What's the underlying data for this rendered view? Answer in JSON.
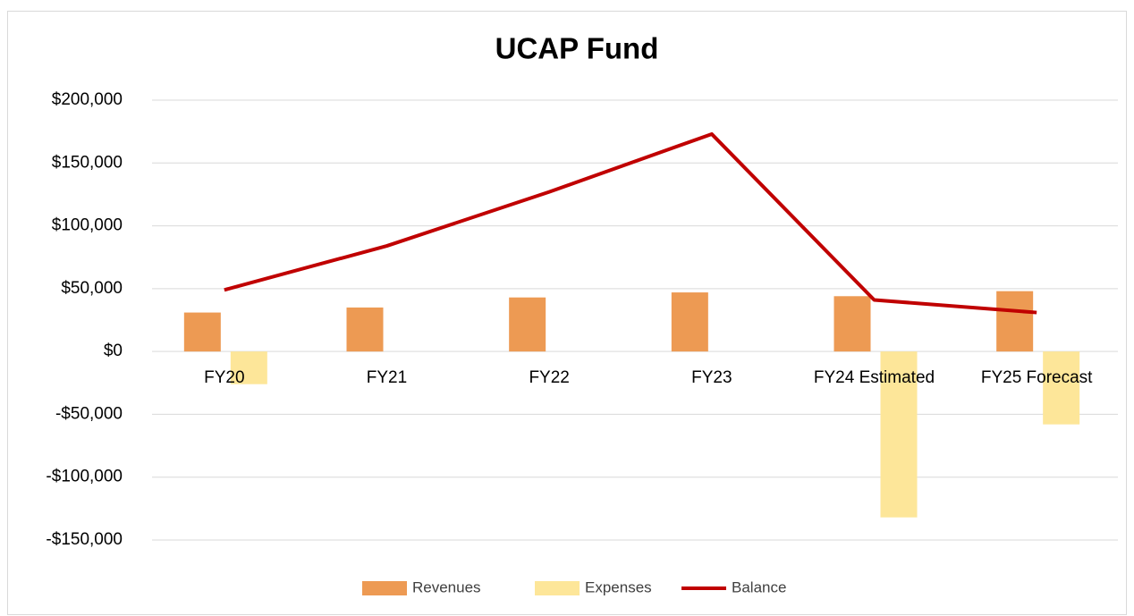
{
  "chart_data": {
    "type": "bar",
    "title": "UCAP Fund",
    "categories": [
      "FY20",
      "FY21",
      "FY22",
      "FY23",
      "FY24 Estimated",
      "FY25 Forecast"
    ],
    "series": [
      {
        "name": "Revenues",
        "type": "bar",
        "color": "#ed9a53",
        "values": [
          31000,
          35000,
          43000,
          47000,
          44000,
          48000
        ]
      },
      {
        "name": "Expenses",
        "type": "bar",
        "color": "#fde699",
        "values": [
          -26000,
          0,
          0,
          0,
          -132000,
          -58000
        ]
      },
      {
        "name": "Balance",
        "type": "line",
        "color": "#c00000",
        "values": [
          49000,
          84000,
          127000,
          173000,
          41000,
          31000
        ]
      }
    ],
    "ylim": [
      -150000,
      200000
    ],
    "yticks": [
      {
        "value": -150000,
        "label": "-$150,000"
      },
      {
        "value": -100000,
        "label": "-$100,000"
      },
      {
        "value": -50000,
        "label": "-$50,000"
      },
      {
        "value": 0,
        "label": "$0"
      },
      {
        "value": 50000,
        "label": "$50,000"
      },
      {
        "value": 100000,
        "label": "$100,000"
      },
      {
        "value": 150000,
        "label": "$150,000"
      },
      {
        "value": 200000,
        "label": "$200,000"
      }
    ],
    "grid": true,
    "legend": "bottom"
  }
}
